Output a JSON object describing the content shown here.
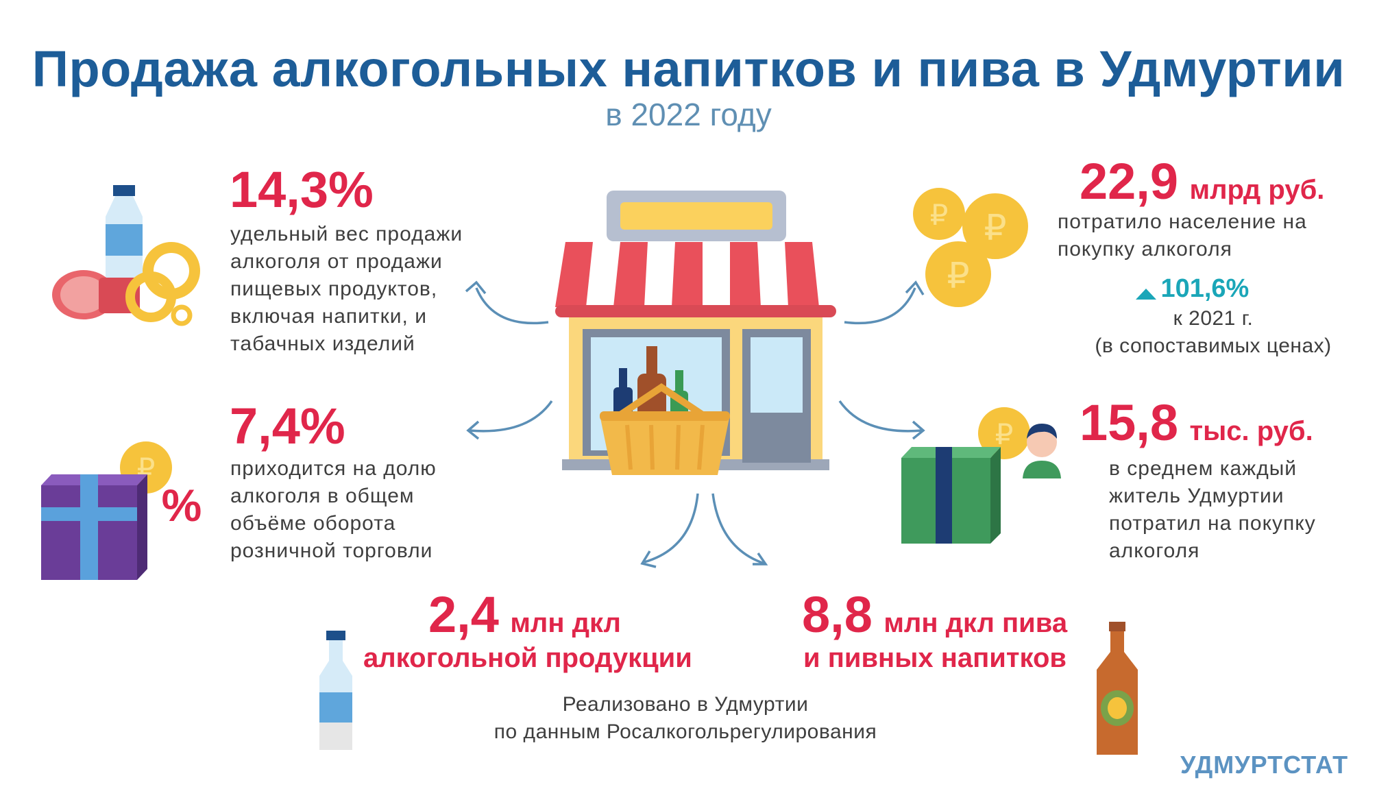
{
  "header": {
    "title": "Продажа алкогольных напитков и пива в Удмуртии",
    "subtitle": "в 2022 году"
  },
  "stats": {
    "share_food": {
      "value": "14,3%",
      "desc": [
        "удельный вес продажи",
        "алкоголя от продажи",
        "пищевых продуктов,",
        "включая напитки, и",
        "табачных изделий"
      ]
    },
    "share_retail": {
      "value": "7,4%",
      "desc": [
        "приходится на долю",
        "алкоголя в общем",
        "объёме оборота",
        "розничной торговли"
      ]
    },
    "spent_total": {
      "value": "22,9",
      "unit": "млрд руб.",
      "desc": [
        "потратило население на",
        "покупку алкоголя"
      ],
      "growth": "101,6%",
      "growth_note": [
        "к 2021 г.",
        "(в сопоставимых ценах)"
      ]
    },
    "per_capita": {
      "value": "15,8",
      "unit": "тыс. руб.",
      "desc": [
        "в среднем каждый",
        "житель Удмуртии",
        "потратил на покупку",
        "алкоголя"
      ]
    },
    "alcohol_volume": {
      "value": "2,4",
      "unit": "млн дкл",
      "unit2": "алкогольной продукции"
    },
    "beer_volume": {
      "value": "8,8",
      "unit": "млн дкл пива",
      "unit2": "и пивных напитков"
    }
  },
  "source_note": [
    "Реализовано в Удмуртии",
    "по данным Росалкогольрегулирования"
  ],
  "brand": "УДМУРТСТАТ",
  "icon_text": {
    "percent_sign": "%",
    "ruble_sign": "₽"
  },
  "colors": {
    "title": "#1d5d98",
    "accent_red": "#e0264a",
    "growth_teal": "#1aa6b8",
    "brand_blue": "#5c93c2"
  }
}
